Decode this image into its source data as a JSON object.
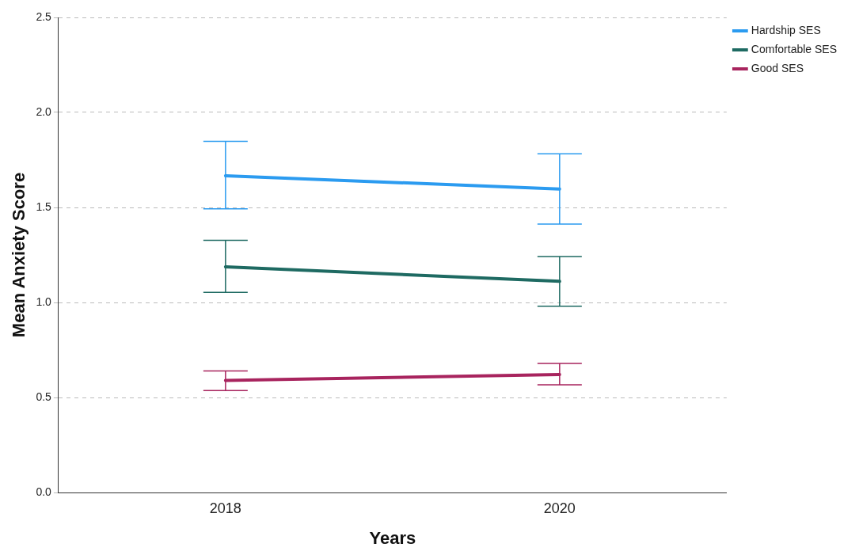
{
  "chart_data": {
    "type": "line",
    "xlabel": "Years",
    "ylabel": "Mean Anxiety Score",
    "categories": [
      "2018",
      "2020"
    ],
    "series": [
      {
        "name": "Hardship SES",
        "color": "#2b9bf0",
        "values": [
          1.667,
          1.597
        ],
        "errors": [
          [
            1.493,
            1.848
          ],
          [
            1.412,
            1.782
          ]
        ]
      },
      {
        "name": "Comfortable SES",
        "color": "#1e6a62",
        "values": [
          1.188,
          1.111
        ],
        "errors": [
          [
            1.053,
            1.327
          ],
          [
            0.98,
            1.242
          ]
        ]
      },
      {
        "name": "Good SES",
        "color": "#a8245e",
        "values": [
          0.59,
          0.621
        ],
        "errors": [
          [
            0.536,
            0.64
          ],
          [
            0.567,
            0.679
          ]
        ]
      }
    ],
    "ylim": [
      0,
      2.5
    ],
    "yticks": [
      {
        "value": 0,
        "label": "0.0"
      },
      0.5,
      {
        "value": 1,
        "label": "1.0"
      },
      1.5,
      {
        "value": 2,
        "label": "2.0"
      },
      2.5
    ],
    "grid": "y",
    "legend": "top right"
  }
}
